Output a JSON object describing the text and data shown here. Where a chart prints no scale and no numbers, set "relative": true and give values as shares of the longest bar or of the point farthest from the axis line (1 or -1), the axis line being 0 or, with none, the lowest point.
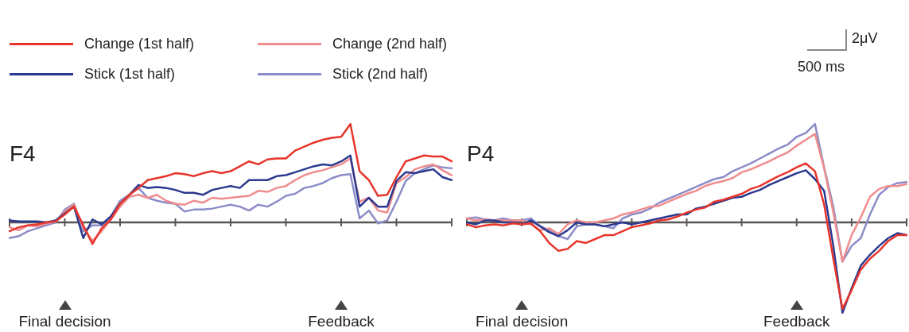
{
  "chart_data": [
    {
      "type": "line",
      "title": "F4",
      "relative": true,
      "legend": "top left",
      "annotations": [
        "Final decision",
        "Feedback"
      ],
      "categories": [
        null,
        null,
        null,
        null,
        null,
        null,
        null,
        null,
        null,
        null,
        null,
        null,
        null,
        null,
        null,
        null,
        null,
        null,
        null,
        null,
        null,
        null,
        null,
        null,
        null,
        null,
        null,
        null,
        null,
        null,
        null,
        null,
        null,
        null,
        null,
        null,
        null,
        null,
        null,
        null,
        null,
        null,
        null,
        null,
        null,
        null,
        null,
        null,
        null
      ],
      "series": [
        {
          "name": "Change (1st half)",
          "color": "#e8352b",
          "values": [
            -0.09,
            -0.05,
            -0.03,
            -0.02,
            0,
            0.01,
            0.08,
            0.16,
            -0.03,
            -0.22,
            -0.06,
            0.03,
            0.19,
            0.28,
            0.35,
            0.43,
            0.45,
            0.47,
            0.5,
            0.49,
            0.47,
            0.5,
            0.52,
            0.5,
            0.52,
            0.57,
            0.62,
            0.59,
            0.64,
            0.65,
            0.65,
            0.73,
            0.77,
            0.81,
            0.84,
            0.86,
            0.87,
            1,
            0.52,
            0.43,
            0.27,
            0.28,
            0.46,
            0.62,
            0.65,
            0.68,
            0.67,
            0.67,
            0.62
          ]
        },
        {
          "name": "Stick (1st half)",
          "color": "#2b3990",
          "values": [
            0.02,
            0.01,
            0.01,
            0.01,
            0,
            0.02,
            0.09,
            0.16,
            -0.16,
            0.03,
            -0.02,
            0.06,
            0.19,
            0.28,
            0.38,
            0.35,
            0.36,
            0.35,
            0.33,
            0.3,
            0.3,
            0.28,
            0.33,
            0.35,
            0.37,
            0.35,
            0.43,
            0.43,
            0.43,
            0.47,
            0.48,
            0.51,
            0.54,
            0.57,
            0.59,
            0.58,
            0.62,
            0.68,
            0.16,
            0.25,
            0.16,
            0.16,
            0.42,
            0.51,
            0.5,
            0.52,
            0.54,
            0.46,
            0.43
          ]
        },
        {
          "name": "Change (2nd half)",
          "color": "#f08c8c",
          "values": [
            -0.05,
            -0.08,
            -0.03,
            -0.04,
            -0.01,
            0.01,
            0.11,
            0.18,
            -0.05,
            -0.19,
            -0.09,
            0.03,
            0.16,
            0.26,
            0.28,
            0.25,
            0.28,
            0.22,
            0.19,
            0.18,
            0.22,
            0.2,
            0.25,
            0.24,
            0.25,
            0.26,
            0.27,
            0.32,
            0.31,
            0.35,
            0.37,
            0.43,
            0.48,
            0.51,
            0.53,
            0.56,
            0.59,
            0.65,
            0.21,
            0.25,
            0.12,
            0.1,
            0.4,
            0.46,
            0.54,
            0.57,
            0.59,
            0.53,
            0.48
          ]
        },
        {
          "name": "Stick (2nd half)",
          "color": "#8c8cc8",
          "values": [
            -0.16,
            -0.14,
            -0.09,
            -0.06,
            -0.03,
            0,
            0.13,
            0.19,
            -0.09,
            -0.03,
            -0.03,
            0.06,
            0.22,
            0.28,
            0.35,
            0.25,
            0.22,
            0.2,
            0.19,
            0.11,
            0.13,
            0.13,
            0.14,
            0.16,
            0.18,
            0.16,
            0.12,
            0.18,
            0.16,
            0.21,
            0.27,
            0.29,
            0.35,
            0.37,
            0.4,
            0.45,
            0.48,
            0.49,
            0.04,
            0.12,
            -0.01,
            0.02,
            0.21,
            0.42,
            0.5,
            0.54,
            0.58,
            0.56,
            0.55
          ]
        }
      ]
    },
    {
      "type": "line",
      "title": "P4",
      "relative": true,
      "annotations": [
        "Final decision",
        "Feedback",
        "2μV",
        "500 ms"
      ],
      "categories": [
        null,
        null,
        null,
        null,
        null,
        null,
        null,
        null,
        null,
        null,
        null,
        null,
        null,
        null,
        null,
        null,
        null,
        null,
        null,
        null,
        null,
        null,
        null,
        null,
        null,
        null,
        null,
        null,
        null,
        null,
        null,
        null,
        null,
        null,
        null,
        null,
        null,
        null,
        null,
        null,
        null,
        null,
        null,
        null,
        null,
        null,
        null,
        null,
        null
      ],
      "series": [
        {
          "color": "#e8352b",
          "values": [
            -0.02,
            -0.05,
            -0.03,
            -0.02,
            -0.03,
            -0.01,
            -0.02,
            -0.01,
            -0.09,
            -0.21,
            -0.29,
            -0.27,
            -0.19,
            -0.21,
            -0.17,
            -0.13,
            -0.13,
            -0.09,
            -0.05,
            -0.03,
            -0.01,
            0.02,
            0.03,
            0.06,
            0.1,
            0.13,
            0.15,
            0.21,
            0.23,
            0.26,
            0.29,
            0.34,
            0.37,
            0.42,
            0.47,
            0.51,
            0.56,
            0.6,
            0.52,
            0.18,
            -0.37,
            -0.88,
            -0.69,
            -0.48,
            -0.37,
            -0.29,
            -0.19,
            -0.13,
            -0.13
          ]
        },
        {
          "color": "#2b3990",
          "values": [
            0,
            -0.02,
            0.02,
            0.02,
            0,
            0,
            -0.02,
            0.02,
            -0.04,
            -0.1,
            -0.14,
            -0.08,
            0,
            -0.02,
            -0.02,
            -0.04,
            -0.02,
            0,
            -0.02,
            0,
            0.02,
            0.04,
            0.06,
            0.08,
            0.08,
            0.14,
            0.16,
            0.19,
            0.22,
            0.25,
            0.26,
            0.3,
            0.33,
            0.38,
            0.42,
            0.46,
            0.5,
            0.53,
            0.44,
            0.32,
            -0.24,
            -0.92,
            -0.67,
            -0.44,
            -0.33,
            -0.24,
            -0.16,
            -0.11,
            -0.13
          ]
        },
        {
          "color": "#f08c8c",
          "values": [
            0.04,
            0.02,
            0.03,
            0.02,
            0.02,
            0.02,
            0.02,
            -0.02,
            -0.08,
            -0.06,
            -0.12,
            -0.02,
            0.02,
            0,
            0,
            0.02,
            0.04,
            0.08,
            0.1,
            0.13,
            0.16,
            0.17,
            0.21,
            0.25,
            0.29,
            0.32,
            0.37,
            0.4,
            0.42,
            0.45,
            0.51,
            0.54,
            0.58,
            0.62,
            0.67,
            0.71,
            0.78,
            0.84,
            0.9,
            0.55,
            0.1,
            -0.4,
            -0.13,
            0.05,
            0.26,
            0.34,
            0.37,
            0.37,
            0.39
          ]
        },
        {
          "color": "#8c8cc8",
          "values": [
            0.04,
            0.05,
            0.03,
            0.02,
            0.04,
            0.02,
            0.02,
            0.04,
            -0.04,
            -0.08,
            -0.14,
            -0.17,
            -0.04,
            -0.02,
            -0.02,
            -0.04,
            -0.06,
            0.04,
            0.08,
            0.1,
            0.14,
            0.2,
            0.24,
            0.28,
            0.32,
            0.36,
            0.4,
            0.44,
            0.46,
            0.52,
            0.56,
            0.6,
            0.65,
            0.7,
            0.75,
            0.79,
            0.87,
            0.91,
            1,
            0.56,
            0.16,
            -0.4,
            -0.24,
            -0.16,
            0.08,
            0.28,
            0.36,
            0.4,
            0.41
          ]
        }
      ]
    }
  ]
}
